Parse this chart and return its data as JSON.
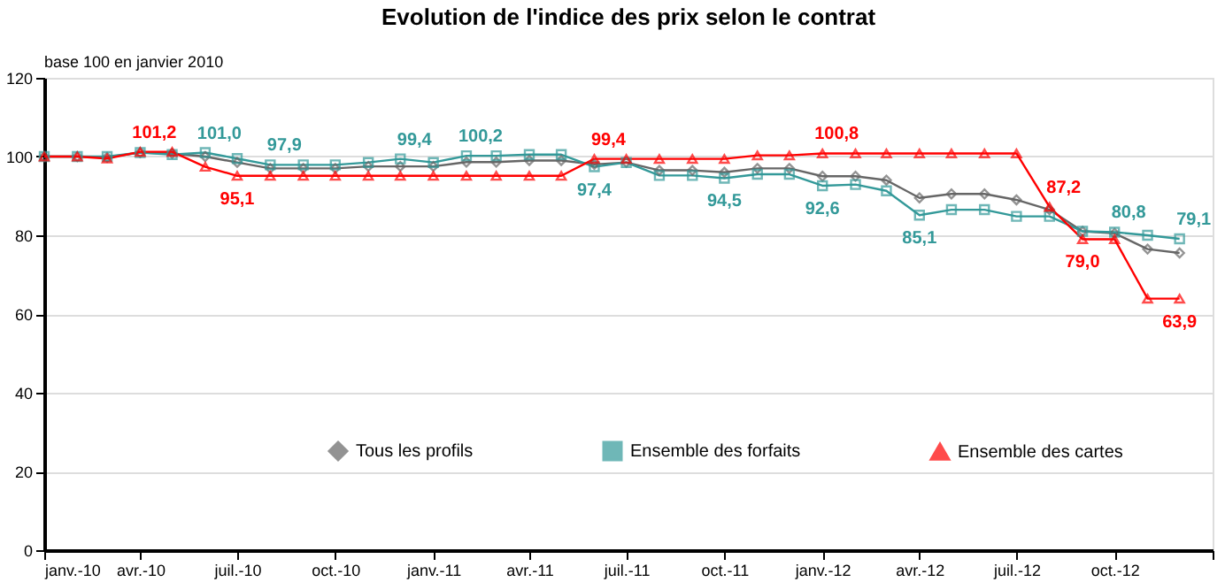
{
  "chart_data": {
    "type": "line",
    "title": "Evolution de l'indice des prix selon le contrat",
    "subtitle": "base 100 en janvier 2010",
    "x": [
      "2010-01",
      "2010-02",
      "2010-03",
      "2010-04",
      "2010-05",
      "2010-06",
      "2010-07",
      "2010-08",
      "2010-09",
      "2010-10",
      "2010-11",
      "2010-12",
      "2011-01",
      "2011-02",
      "2011-03",
      "2011-04",
      "2011-05",
      "2011-06",
      "2011-07",
      "2011-08",
      "2011-09",
      "2011-10",
      "2011-11",
      "2011-12",
      "2012-01",
      "2012-02",
      "2012-03",
      "2012-04",
      "2012-05",
      "2012-06",
      "2012-07",
      "2012-08",
      "2012-09",
      "2012-10",
      "2012-11",
      "2012-12"
    ],
    "series": [
      {
        "name": "Tous les profils",
        "color": "#666666",
        "marker": "diamond",
        "values": [
          100,
          100,
          99.8,
          101,
          100.8,
          100,
          98.5,
          97,
          97,
          97,
          97.5,
          97.5,
          97.5,
          98.6,
          98.6,
          99,
          99,
          98,
          98.5,
          96.5,
          96.5,
          96,
          97,
          97,
          95,
          95,
          94,
          89.5,
          90.5,
          90.5,
          89,
          86.5,
          81,
          80.5,
          76.5,
          75.5
        ]
      },
      {
        "name": "Ensemble des forfaits",
        "color": "#339999",
        "marker": "square",
        "values": [
          100,
          100,
          100,
          101,
          100.5,
          101.0,
          99.5,
          97.9,
          97.9,
          97.9,
          98.5,
          99.4,
          98.5,
          100.2,
          100.2,
          100.5,
          100.5,
          97.4,
          98.5,
          95.2,
          95.2,
          94.5,
          95.5,
          95.5,
          92.6,
          92.9,
          91.3,
          85.1,
          86.5,
          86.5,
          84.8,
          84.8,
          81,
          80.8,
          80,
          79.1
        ],
        "value_labels": [
          null,
          null,
          null,
          null,
          null,
          "101,0",
          null,
          "97,9",
          null,
          null,
          null,
          "99,4",
          null,
          "100,2",
          null,
          null,
          null,
          "97,4",
          null,
          null,
          null,
          "94,5",
          null,
          null,
          "92,6",
          null,
          null,
          "85,1",
          null,
          null,
          null,
          null,
          null,
          "80,8",
          null,
          "79,1"
        ]
      },
      {
        "name": "Ensemble des cartes",
        "color": "#ff0000",
        "marker": "triangle",
        "values": [
          100,
          100,
          99.5,
          101.2,
          101.2,
          97.4,
          95.1,
          95.1,
          95.1,
          95.1,
          95.1,
          95.1,
          95.1,
          95.1,
          95.1,
          95.1,
          95.1,
          99.4,
          99.4,
          99.4,
          99.4,
          99.4,
          100.3,
          100.3,
          100.8,
          100.8,
          100.8,
          100.8,
          100.8,
          100.8,
          100.8,
          87.2,
          79.0,
          79.0,
          63.9,
          63.9
        ],
        "value_labels": [
          null,
          null,
          null,
          "101,2",
          null,
          null,
          "95,1",
          null,
          null,
          null,
          null,
          null,
          null,
          null,
          null,
          null,
          null,
          "99,4",
          null,
          null,
          null,
          null,
          null,
          null,
          "100,8",
          null,
          null,
          null,
          null,
          null,
          null,
          "87,2",
          "79,0",
          null,
          null,
          "63,9"
        ]
      }
    ],
    "xlim": [
      "2010-01",
      "2013-01"
    ],
    "xticks": [
      {
        "value": "2010-01",
        "label": "janv.-10"
      },
      {
        "value": "2010-04",
        "label": "avr.-10"
      },
      {
        "value": "2010-07",
        "label": "juil.-10"
      },
      {
        "value": "2010-10",
        "label": "oct.-10"
      },
      {
        "value": "2011-01",
        "label": "janv.-11"
      },
      {
        "value": "2011-04",
        "label": "avr.-11"
      },
      {
        "value": "2011-07",
        "label": "juil.-11"
      },
      {
        "value": "2011-10",
        "label": "oct.-11"
      },
      {
        "value": "2012-01",
        "label": "janv.-12"
      },
      {
        "value": "2012-04",
        "label": "avr.-12"
      },
      {
        "value": "2012-07",
        "label": "juil.-12"
      },
      {
        "value": "2012-10",
        "label": "oct.-12"
      },
      {
        "value": "2013-01",
        "label": null
      }
    ],
    "ylim": [
      0,
      120
    ],
    "yticks": [
      0,
      20,
      40,
      60,
      80,
      100,
      120
    ],
    "grid": "y",
    "legend": "bottom",
    "line_style": "solid"
  }
}
